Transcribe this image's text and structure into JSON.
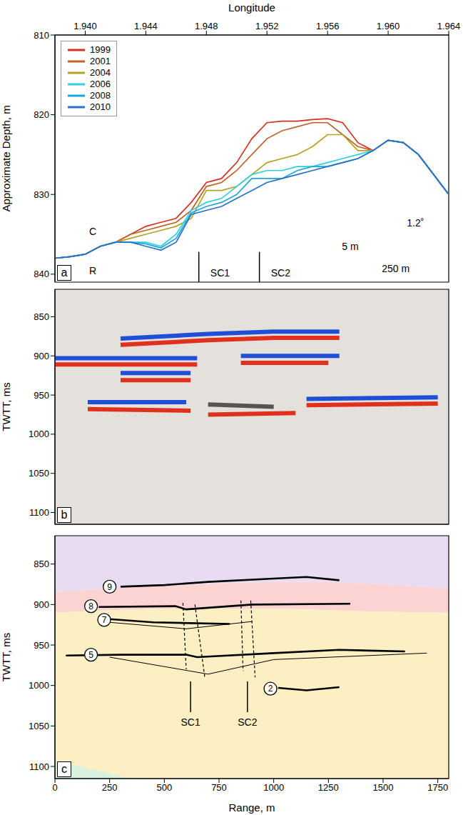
{
  "chart_data": [
    {
      "type": "line",
      "panel_label": "a",
      "xlabel": "Longitude",
      "ylabel": "Approximate Depth, m",
      "xlim": [
        1.938,
        1.964
      ],
      "xticks": [
        {
          "value": 1.94,
          "label": "1.940"
        },
        {
          "value": 1.944,
          "label": "1.944"
        },
        {
          "value": 1.948,
          "label": "1.948"
        },
        {
          "value": 1.952,
          "label": "1.952"
        },
        {
          "value": 1.956,
          "label": "1.956"
        },
        {
          "value": 1.96,
          "label": "1.960"
        },
        {
          "value": 1.964,
          "label": "1.964"
        }
      ],
      "ylim": [
        810,
        841
      ],
      "yticks": [
        810,
        820,
        830,
        840
      ],
      "legend": "top-left",
      "x": [
        1.938,
        1.939,
        1.94,
        1.941,
        1.942,
        1.943,
        1.944,
        1.945,
        1.946,
        1.947,
        1.948,
        1.949,
        1.95,
        1.951,
        1.952,
        1.953,
        1.954,
        1.955,
        1.956,
        1.957,
        1.958,
        1.959,
        1.96,
        1.961,
        1.962,
        1.963,
        1.964
      ],
      "series": [
        {
          "name": "1999",
          "color": "#d7301f",
          "values": [
            838,
            837.8,
            837.5,
            836.5,
            836,
            835,
            834,
            833.5,
            833,
            831,
            828.5,
            828,
            826,
            823,
            821,
            820.8,
            820.8,
            820.6,
            820.5,
            821,
            823.5,
            824.5,
            823.2,
            823.5,
            825,
            827.5,
            830
          ]
        },
        {
          "name": "2001",
          "color": "#c0622a",
          "values": [
            838,
            837.8,
            837.5,
            836.5,
            836,
            835,
            834.5,
            834,
            833.5,
            832,
            829,
            828.5,
            827,
            825,
            823,
            822,
            821.5,
            821,
            821,
            822.5,
            824,
            824.5,
            823.2,
            823.5,
            825,
            827.5,
            830
          ]
        },
        {
          "name": "2004",
          "color": "#b5a21f",
          "values": [
            838,
            837.8,
            837.5,
            836.5,
            836,
            835.5,
            835,
            834.5,
            834,
            833,
            829.5,
            829.5,
            829,
            827.5,
            826,
            825.5,
            825,
            824,
            822.5,
            822.5,
            824.5,
            824.5,
            823.2,
            823.5,
            825,
            827.5,
            830
          ]
        },
        {
          "name": "2006",
          "color": "#2fd0e0",
          "values": [
            838,
            837.8,
            837.5,
            836.5,
            836,
            836,
            836,
            836.5,
            835,
            832,
            831,
            830.5,
            829,
            827.5,
            827,
            827,
            826.5,
            826.5,
            826,
            825.5,
            825,
            824.5,
            823.2,
            823.5,
            825,
            827.5,
            830
          ]
        },
        {
          "name": "2008",
          "color": "#1aa9d6",
          "values": [
            838,
            837.8,
            837.5,
            836.5,
            836,
            836,
            836.2,
            836.7,
            835.5,
            832.3,
            831.5,
            831,
            830,
            828,
            828,
            828,
            827,
            826.5,
            826.5,
            826,
            825.5,
            824.5,
            823.2,
            823.5,
            825,
            827.5,
            830
          ]
        },
        {
          "name": "2010",
          "color": "#2a6fc9",
          "values": [
            838,
            837.8,
            837.5,
            836.5,
            836,
            836,
            836.5,
            837,
            836,
            832.5,
            832,
            831.5,
            830.5,
            829.5,
            828.5,
            828,
            827.5,
            827,
            826.5,
            826,
            825.5,
            824.5,
            823.2,
            823.5,
            825,
            827.5,
            830
          ]
        }
      ],
      "annotations": [
        {
          "text": "C",
          "x": 1.9405,
          "y": 834.6
        },
        {
          "text": "R",
          "x": 1.9405,
          "y": 839.6
        },
        {
          "text": "SC1",
          "x": 1.9489,
          "y": 839.8
        },
        {
          "text": "SC2",
          "x": 1.9529,
          "y": 839.8
        },
        {
          "text": "5 m",
          "x": 1.9575,
          "y": 836.5
        },
        {
          "text": "250 m",
          "x": 1.9605,
          "y": 839.3
        },
        {
          "text": "1.2˚",
          "x": 1.9618,
          "y": 833.6
        }
      ],
      "arrows": [
        {
          "x": 1.9475,
          "y": [
            841,
            837.2
          ]
        },
        {
          "x": 1.9515,
          "y": [
            841,
            837.2
          ]
        }
      ]
    },
    {
      "type": "segments",
      "panel_label": "b",
      "ylabel": "TWTT, ms",
      "xlim": [
        0,
        1800
      ],
      "ylim": [
        815,
        1115
      ],
      "yticks": [
        850,
        900,
        950,
        1000,
        1050,
        1100
      ],
      "tick_labels": "y",
      "segments": [
        {
          "color": "#1f4fd6",
          "x": [
            300,
            700,
            1000,
            1300
          ],
          "y": [
            878,
            872,
            869,
            869
          ]
        },
        {
          "color": "#e0301e",
          "x": [
            300,
            700,
            1000,
            1300
          ],
          "y": [
            886,
            880,
            877,
            877
          ]
        },
        {
          "color": "#1f4fd6",
          "x": [
            0,
            650
          ],
          "y": [
            903,
            903
          ]
        },
        {
          "color": "#e0301e",
          "x": [
            0,
            650
          ],
          "y": [
            911,
            911
          ]
        },
        {
          "color": "#1f4fd6",
          "x": [
            850,
            1300
          ],
          "y": [
            900,
            900
          ]
        },
        {
          "color": "#e0301e",
          "x": [
            850,
            1250
          ],
          "y": [
            909,
            909
          ]
        },
        {
          "color": "#1f4fd6",
          "x": [
            300,
            620
          ],
          "y": [
            922,
            922
          ]
        },
        {
          "color": "#e0301e",
          "x": [
            300,
            620
          ],
          "y": [
            931,
            931
          ]
        },
        {
          "color": "#1f4fd6",
          "x": [
            150,
            600
          ],
          "y": [
            959,
            959
          ]
        },
        {
          "color": "#e0301e",
          "x": [
            150,
            620
          ],
          "y": [
            968,
            970
          ]
        },
        {
          "color": "#1f4fd6",
          "x": [
            1150,
            1750
          ],
          "y": [
            955,
            953
          ]
        },
        {
          "color": "#e0301e",
          "x": [
            1150,
            1750
          ],
          "y": [
            963,
            961
          ]
        },
        {
          "color": "#555555",
          "x": [
            700,
            1000
          ],
          "y": [
            962,
            965
          ]
        },
        {
          "color": "#e0301e",
          "x": [
            700,
            1100
          ],
          "y": [
            975,
            973
          ]
        }
      ]
    },
    {
      "type": "area",
      "panel_label": "c",
      "xlabel": "Range, m",
      "ylabel": "TWTT, ms",
      "xlim": [
        0,
        1800
      ],
      "xticks": [
        0,
        250,
        500,
        750,
        1000,
        1250,
        1500,
        1750
      ],
      "ylim": [
        815,
        1115
      ],
      "yticks": [
        850,
        900,
        950,
        1000,
        1050,
        1100
      ],
      "layers": [
        {
          "color": "#e7dcf2",
          "x": [
            0,
            250,
            500,
            750,
            1000,
            1250,
            1500,
            1800
          ],
          "top": [
            815,
            815,
            815,
            815,
            815,
            815,
            815,
            815
          ],
          "bottom": [
            885,
            880,
            877,
            874,
            872,
            872,
            875,
            880
          ]
        },
        {
          "color": "#fbd3d3",
          "x": [
            0,
            250,
            500,
            750,
            1000,
            1250,
            1500,
            1800
          ],
          "top": [
            885,
            880,
            877,
            874,
            872,
            872,
            875,
            880
          ],
          "bottom": [
            910,
            907,
            905,
            905,
            905,
            907,
            909,
            910
          ]
        },
        {
          "color": "#fcefc4",
          "x": [
            0,
            250,
            500,
            750,
            1000,
            1250,
            1500,
            1800
          ],
          "top": [
            910,
            907,
            905,
            905,
            905,
            907,
            909,
            910
          ],
          "bottom": [
            1115,
            1115,
            1115,
            1115,
            1115,
            1115,
            1115,
            1115
          ]
        },
        {
          "color": "#d9f2e0",
          "x": [
            0,
            350
          ],
          "top": [
            1093,
            1115
          ],
          "bottom": [
            1115,
            1115
          ]
        }
      ],
      "horizons": [
        {
          "line_style": "solid",
          "x": [
            300,
            500,
            700,
            1000,
            1150,
            1300
          ],
          "y": [
            878,
            876,
            872,
            868,
            866,
            870
          ]
        },
        {
          "line_style": "solid",
          "x": [
            200,
            550,
            600,
            900,
            1350
          ],
          "y": [
            903,
            902,
            906,
            900,
            899
          ]
        },
        {
          "line_style": "solid",
          "x": [
            250,
            450,
            800
          ],
          "y": [
            918,
            922,
            924
          ]
        },
        {
          "line_style": "thin",
          "x": [
            250,
            600,
            900
          ],
          "y": [
            922,
            930,
            921
          ]
        },
        {
          "line_style": "solid",
          "x": [
            50,
            300,
            600,
            650,
            1000,
            1300,
            1600
          ],
          "y": [
            963,
            962,
            962,
            965,
            960,
            956,
            958
          ]
        },
        {
          "line_style": "thin",
          "x": [
            250,
            700,
            1000,
            1700
          ],
          "y": [
            965,
            986,
            968,
            960
          ]
        },
        {
          "line_style": "solid",
          "x": [
            1020,
            1150,
            1300
          ],
          "y": [
            1003,
            1006,
            1002
          ]
        },
        {
          "line_style": "dashed",
          "x": [
            585,
            600
          ],
          "y": [
            898,
            980
          ]
        },
        {
          "line_style": "dashed",
          "x": [
            640,
            685
          ],
          "y": [
            900,
            990
          ]
        },
        {
          "line_style": "dashed",
          "x": [
            850,
            860
          ],
          "y": [
            895,
            982
          ]
        },
        {
          "line_style": "dashed",
          "x": [
            895,
            915
          ],
          "y": [
            895,
            990
          ]
        }
      ],
      "annotations": [
        {
          "text": "9",
          "x": 250,
          "y": 878,
          "marker": "circle"
        },
        {
          "text": "8",
          "x": 165,
          "y": 902,
          "marker": "circle"
        },
        {
          "text": "7",
          "x": 225,
          "y": 919,
          "marker": "circle"
        },
        {
          "text": "5",
          "x": 165,
          "y": 962,
          "marker": "circle"
        },
        {
          "text": "2",
          "x": 985,
          "y": 1004,
          "marker": "circle"
        },
        {
          "text": "SC1",
          "x": 620,
          "y": 1045
        },
        {
          "text": "SC2",
          "x": 880,
          "y": 1045
        }
      ],
      "arrows": [
        {
          "x": 620,
          "y": [
            1033,
            995
          ]
        },
        {
          "x": 880,
          "y": [
            1033,
            995
          ]
        }
      ]
    }
  ]
}
